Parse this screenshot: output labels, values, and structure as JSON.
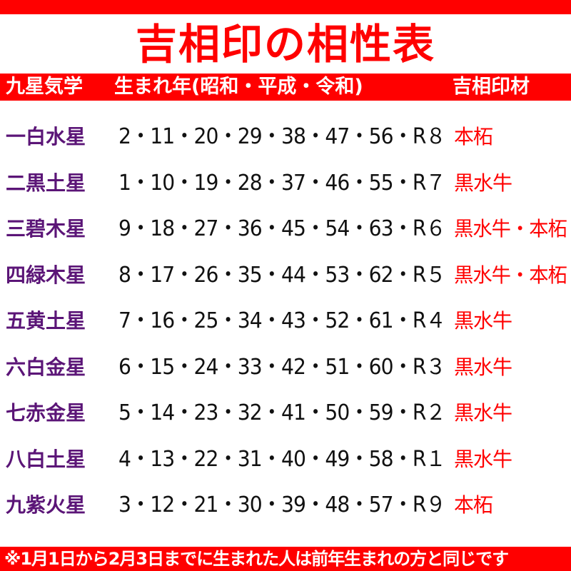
{
  "title": "吉相印の相性表",
  "header": {
    "col_star": "九星気学",
    "col_years": "生まれ年(昭和・平成・令和)",
    "col_material": "吉相印材"
  },
  "rows": [
    {
      "star": "一白水星",
      "years": "2・11・20・29・38・47・56・R８",
      "material": "本柘"
    },
    {
      "star": "二黒土星",
      "years": "1・10・19・28・37・46・55・R７",
      "material": "黒水牛"
    },
    {
      "star": "三碧木星",
      "years": "9・18・27・36・45・54・63・R６",
      "material": "黒水牛・本柘"
    },
    {
      "star": "四緑木星",
      "years": "8・17・26・35・44・53・62・R５",
      "material": "黒水牛・本柘"
    },
    {
      "star": "五黄土星",
      "years": "7・16・25・34・43・52・61・R４",
      "material": "黒水牛"
    },
    {
      "star": "六白金星",
      "years": "6・15・24・33・42・51・60・R３",
      "material": "黒水牛"
    },
    {
      "star": "七赤金星",
      "years": "5・14・23・32・41・50・59・R２",
      "material": "黒水牛"
    },
    {
      "star": "八白土星",
      "years": "4・13・22・31・40・49・58・R１",
      "material": "黒水牛"
    },
    {
      "star": "九紫火星",
      "years": "3・12・21・30・39・48・57・R９",
      "material": "本柘"
    }
  ],
  "footer": "※1月1日から2月3日までに生まれた人は前年生まれの方と同じです",
  "colors": {
    "accent": "#ff0000",
    "star_text": "#5b1577",
    "years_text": "#111111"
  }
}
